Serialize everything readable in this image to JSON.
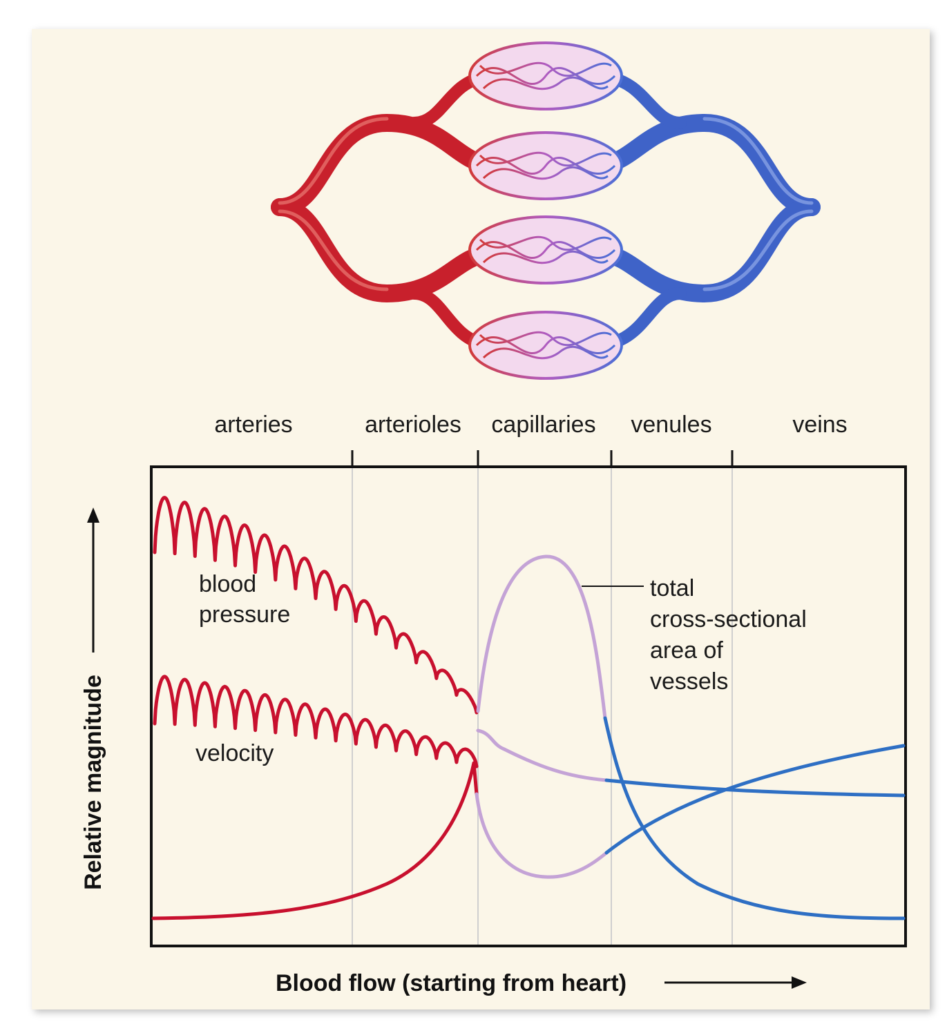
{
  "segments": [
    "arteries",
    "arterioles",
    "capillaries",
    "venules",
    "veins"
  ],
  "labels": {
    "blood_pressure": [
      "blood",
      "pressure"
    ],
    "velocity": "velocity",
    "cross_section": [
      "total",
      "cross-sectional",
      "area of",
      "vessels"
    ]
  },
  "axes": {
    "x_title": "Blood flow (starting from heart)",
    "y_title": "Relative magnitude"
  },
  "colors": {
    "artery_red": "#c8102e",
    "capillary_lilac": "#c4a3d6",
    "vein_blue": "#2e6fc4",
    "background": "#fbf6e8"
  }
}
